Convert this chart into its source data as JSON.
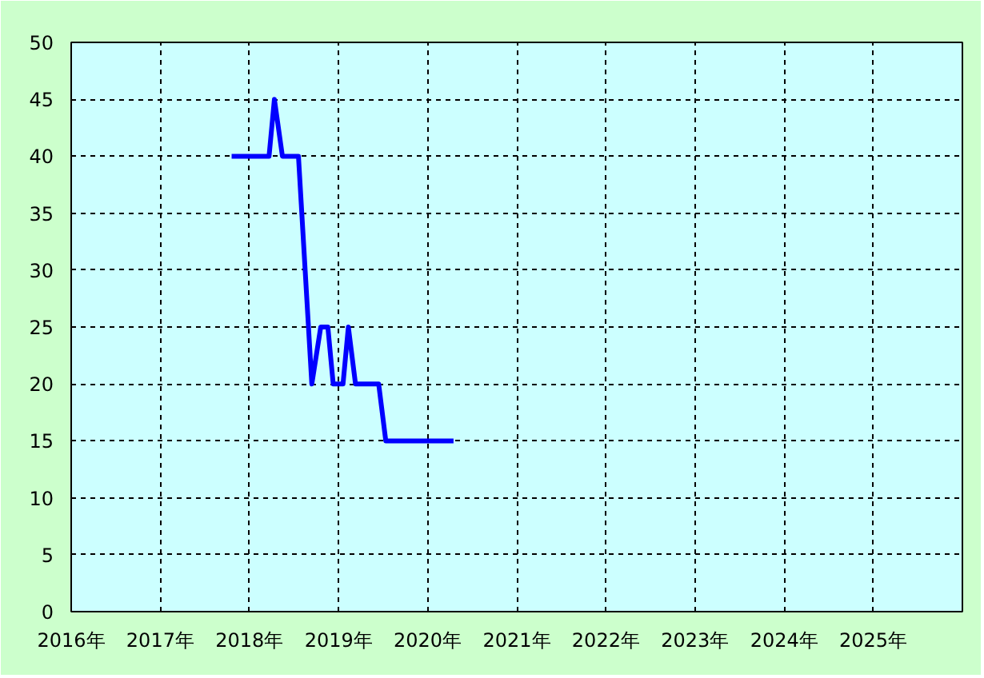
{
  "chart_data": {
    "type": "line",
    "x": [
      2017.8,
      2018.22,
      2018.28,
      2018.37,
      2018.55,
      2018.7,
      2018.8,
      2018.88,
      2018.94,
      2019.05,
      2019.11,
      2019.19,
      2019.45,
      2019.53,
      2020.29
    ],
    "series": [
      {
        "color": "#0000ff",
        "values": [
          40,
          40,
          45,
          40,
          40,
          20,
          25,
          25,
          20,
          20,
          25,
          20,
          20,
          15,
          15
        ]
      }
    ],
    "xlim": [
      2016,
      2026
    ],
    "xticks": [
      {
        "value": 2016,
        "label": "2016年"
      },
      {
        "value": 2017,
        "label": "2017年"
      },
      {
        "value": 2018,
        "label": "2018年"
      },
      {
        "value": 2019,
        "label": "2019年"
      },
      {
        "value": 2020,
        "label": "2020年"
      },
      {
        "value": 2021,
        "label": "2021年"
      },
      {
        "value": 2022,
        "label": "2022年"
      },
      {
        "value": 2023,
        "label": "2023年"
      },
      {
        "value": 2024,
        "label": "2024年"
      },
      {
        "value": 2025,
        "label": "2025年"
      }
    ],
    "ylim": [
      0,
      50
    ],
    "yticks": [
      0,
      5,
      10,
      15,
      20,
      25,
      30,
      35,
      40,
      45,
      50
    ],
    "grid": true,
    "line_style": "solid",
    "marker": "none"
  }
}
